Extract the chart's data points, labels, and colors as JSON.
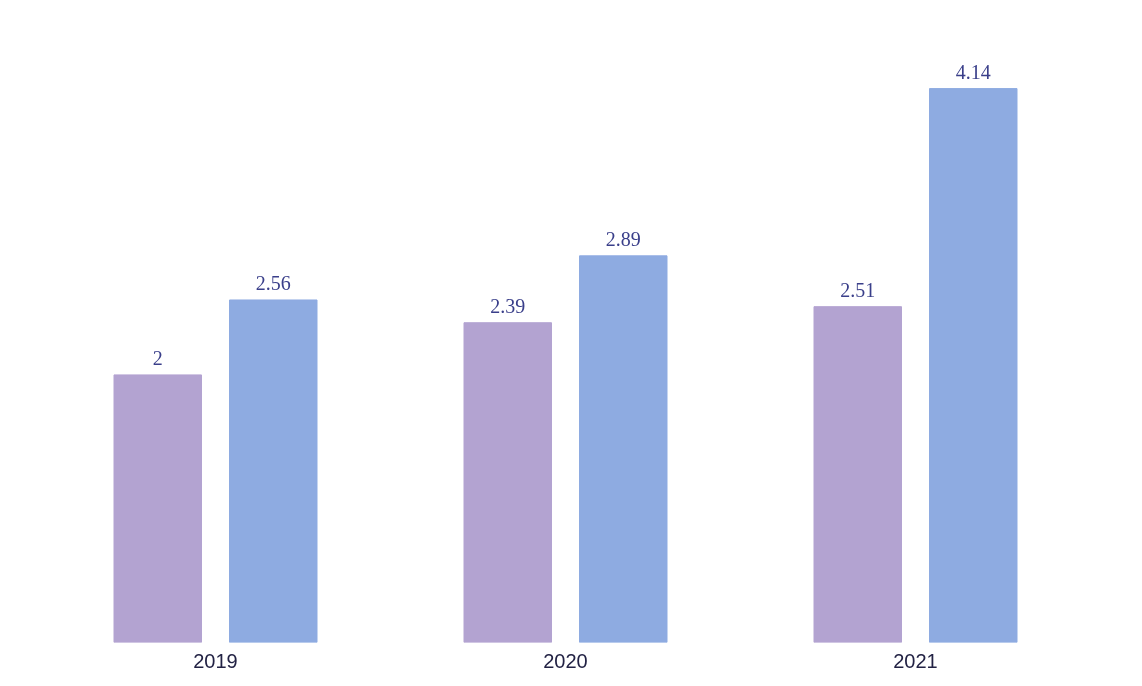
{
  "chart_data": {
    "type": "bar",
    "categories": [
      "2019",
      "2020",
      "2021"
    ],
    "series": [
      {
        "color": "#b3a3d1",
        "values": [
          2,
          2.39,
          2.51
        ]
      },
      {
        "color": "#8eabe1",
        "values": [
          2.56,
          2.89,
          4.14
        ]
      }
    ],
    "data_labels": true,
    "grid": false
  }
}
